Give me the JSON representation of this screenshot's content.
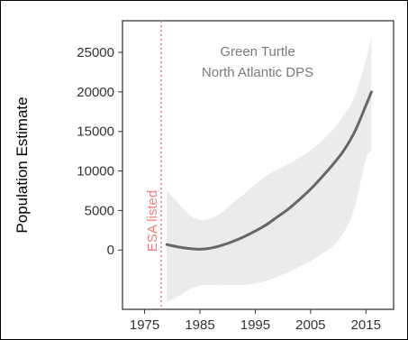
{
  "chart_data": {
    "type": "line",
    "title": "",
    "xlabel": "",
    "ylabel": "Population Estimate",
    "xlim": [
      1971,
      2020
    ],
    "ylim": [
      -7500,
      29000
    ],
    "x_ticks": [
      1975,
      1985,
      1995,
      2005,
      2015
    ],
    "y_ticks": [
      0,
      5000,
      10000,
      15000,
      20000,
      25000
    ],
    "grid": false,
    "legend": "none",
    "annotations": [
      {
        "text": "Green Turtle"
      },
      {
        "text": "North Atlantic DPS"
      }
    ],
    "reference_line": {
      "x": 1978,
      "label": "ESA listed",
      "color": "#f08080",
      "style": "dotted"
    },
    "series": [
      {
        "color": "#666666",
        "x": [
          1979,
          1981,
          1983,
          1985,
          1987,
          1989,
          1991,
          1993,
          1995,
          1997,
          1999,
          2001,
          2003,
          2005,
          2007,
          2009,
          2011,
          2013,
          2015,
          2016
        ],
        "y": [
          700,
          400,
          200,
          100,
          250,
          600,
          1100,
          1700,
          2400,
          3200,
          4200,
          5200,
          6400,
          7700,
          9200,
          10800,
          12600,
          15000,
          18300,
          20000
        ],
        "ci_lower": [
          -6500,
          -5900,
          -5000,
          -4500,
          -4400,
          -4400,
          -4400,
          -4400,
          -4200,
          -3900,
          -3400,
          -2800,
          -2100,
          -1400,
          -500,
          500,
          2200,
          5500,
          11500,
          12500
        ],
        "ci_upper": [
          7500,
          6000,
          4500,
          3800,
          4000,
          4800,
          6000,
          7100,
          8300,
          9400,
          10200,
          10900,
          11700,
          12600,
          13800,
          15200,
          17000,
          19500,
          24000,
          27000
        ]
      }
    ]
  }
}
